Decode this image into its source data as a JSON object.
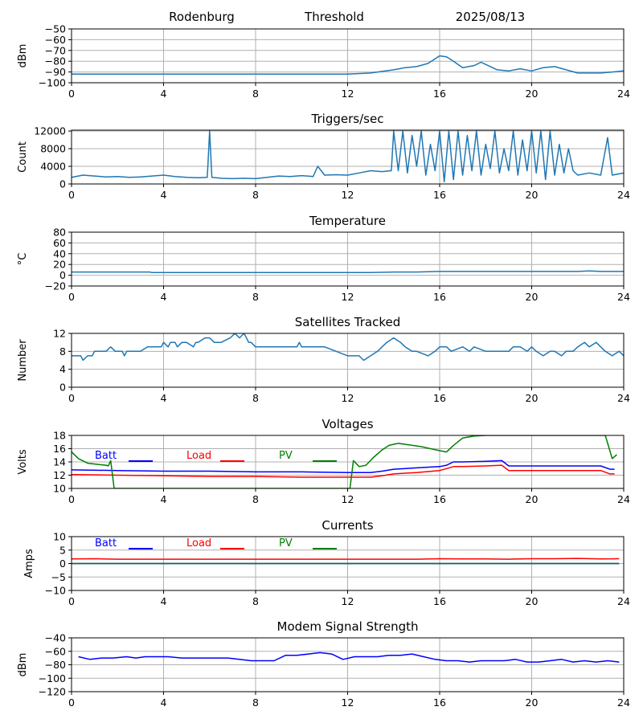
{
  "header": {
    "site": "Rodenburg",
    "mode": "Threshold",
    "date": "2025/08/13"
  },
  "chart_data": [
    {
      "id": "threshold",
      "type": "line",
      "title": "",
      "xlabel": "",
      "ylabel": "dBm",
      "xlim": [
        0,
        24
      ],
      "ylim": [
        -100,
        -50
      ],
      "xticks": [
        0,
        4,
        8,
        12,
        16,
        20,
        24
      ],
      "yticks": [
        -100,
        -90,
        -80,
        -70,
        -60,
        -50
      ],
      "series": [
        {
          "color": "#1f77b4",
          "x": [
            0,
            2,
            4,
            6,
            8,
            10,
            12,
            13,
            14,
            14.5,
            15,
            15.5,
            16,
            16.3,
            16.6,
            17,
            17.5,
            17.8,
            18,
            18.5,
            19,
            19.5,
            20,
            20.5,
            21,
            21.5,
            22,
            22.5,
            23,
            23.5,
            24
          ],
          "y": [
            -92,
            -92,
            -92,
            -92,
            -92,
            -92,
            -92,
            -91,
            -88,
            -86,
            -85,
            -82,
            -75,
            -76,
            -80,
            -86,
            -84,
            -81,
            -83,
            -88,
            -89,
            -87,
            -89,
            -86,
            -85,
            -88,
            -91,
            -91,
            -91,
            -90,
            -89
          ]
        }
      ]
    },
    {
      "id": "triggers",
      "type": "line",
      "title": "Triggers/sec",
      "xlabel": "",
      "ylabel": "Count",
      "xlim": [
        0,
        24
      ],
      "ylim": [
        0,
        12200
      ],
      "xticks": [
        0,
        4,
        8,
        12,
        16,
        20,
        24
      ],
      "yticks": [
        0,
        4000,
        8000,
        12000
      ],
      "series": [
        {
          "color": "#1f77b4",
          "x": [
            0,
            0.5,
            1,
            1.5,
            2,
            2.5,
            3,
            3.5,
            4,
            4.5,
            5,
            5.5,
            5.9,
            6,
            6.1,
            6.5,
            7,
            7.5,
            8,
            8.5,
            9,
            9.5,
            10,
            10.5,
            10.7,
            11,
            11.5,
            12,
            12.5,
            13,
            13.5,
            13.9,
            14,
            14.2,
            14.4,
            14.6,
            14.8,
            15,
            15.2,
            15.4,
            15.6,
            15.8,
            16,
            16.2,
            16.4,
            16.6,
            16.8,
            17,
            17.2,
            17.4,
            17.6,
            17.8,
            18,
            18.2,
            18.4,
            18.6,
            18.8,
            19,
            19.2,
            19.4,
            19.6,
            19.8,
            20,
            20.2,
            20.4,
            20.6,
            20.8,
            21,
            21.2,
            21.4,
            21.6,
            21.8,
            22,
            22.5,
            23,
            23.3,
            23.5,
            24
          ],
          "y": [
            1500,
            2000,
            1800,
            1600,
            1700,
            1500,
            1600,
            1800,
            2000,
            1700,
            1500,
            1400,
            1500,
            12000,
            1500,
            1300,
            1200,
            1300,
            1200,
            1500,
            1800,
            1700,
            1900,
            1700,
            4000,
            2000,
            2100,
            2000,
            2500,
            3000,
            2800,
            3000,
            12000,
            3000,
            12000,
            2500,
            11000,
            4000,
            12000,
            2000,
            9000,
            3000,
            12000,
            500,
            12000,
            1000,
            12000,
            2000,
            11000,
            3000,
            12000,
            2000,
            9000,
            3500,
            12000,
            2500,
            8000,
            3000,
            12000,
            2000,
            10000,
            3000,
            12000,
            2500,
            12000,
            1000,
            12000,
            2000,
            9000,
            2500,
            8000,
            3000,
            2000,
            2500,
            2000,
            10500,
            2000,
            2500
          ]
        }
      ]
    },
    {
      "id": "temperature",
      "type": "line",
      "title": "Temperature",
      "xlabel": "",
      "ylabel": "°C",
      "xlim": [
        0,
        24
      ],
      "ylim": [
        -20,
        80
      ],
      "xticks": [
        0,
        4,
        8,
        12,
        16,
        20,
        24
      ],
      "yticks": [
        -20,
        0,
        20,
        40,
        60,
        80
      ],
      "series": [
        {
          "color": "#1f77b4",
          "x": [
            0,
            3.4,
            3.5,
            8,
            12,
            13,
            14,
            15,
            16,
            18,
            20,
            22,
            22.5,
            23,
            24
          ],
          "y": [
            6,
            6,
            5,
            5,
            5,
            5,
            6,
            6,
            7,
            7,
            7,
            7,
            8,
            7,
            7
          ]
        }
      ]
    },
    {
      "id": "satellites",
      "type": "line",
      "title": "Satellites Tracked",
      "xlabel": "",
      "ylabel": "Number",
      "xlim": [
        0,
        24
      ],
      "ylim": [
        0,
        12
      ],
      "xticks": [
        0,
        4,
        8,
        12,
        16,
        20,
        24
      ],
      "yticks": [
        0,
        4,
        8,
        12
      ],
      "series": [
        {
          "color": "#1f77b4",
          "x": [
            0,
            0.4,
            0.5,
            0.7,
            0.9,
            1,
            1.5,
            1.7,
            1.9,
            2.2,
            2.3,
            2.4,
            2.6,
            3,
            3.3,
            3.5,
            3.9,
            4,
            4.2,
            4.3,
            4.5,
            4.6,
            4.8,
            5,
            5.3,
            5.4,
            5.5,
            5.8,
            6,
            6.2,
            6.5,
            6.9,
            7.1,
            7.3,
            7.5,
            7.7,
            7.8,
            8,
            8.5,
            9,
            9.5,
            9.8,
            9.9,
            10,
            10.5,
            11,
            11.5,
            12,
            12.5,
            12.7,
            13,
            13.3,
            13.5,
            13.7,
            14,
            14.3,
            14.5,
            14.8,
            15,
            15.5,
            15.8,
            16,
            16.3,
            16.5,
            17,
            17.3,
            17.5,
            18,
            18.5,
            19,
            19.2,
            19.5,
            19.8,
            20,
            20.2,
            20.5,
            20.8,
            21,
            21.3,
            21.5,
            21.8,
            22,
            22.3,
            22.5,
            22.8,
            23,
            23.2,
            23.5,
            23.8,
            24
          ],
          "y": [
            7,
            7,
            6,
            7,
            7,
            8,
            8,
            9,
            8,
            8,
            7,
            8,
            8,
            8,
            9,
            9,
            9,
            10,
            9,
            10,
            10,
            9,
            10,
            10,
            9,
            10,
            10,
            11,
            11,
            10,
            10,
            11,
            12,
            11,
            12,
            10,
            10,
            9,
            9,
            9,
            9,
            9,
            10,
            9,
            9,
            9,
            8,
            7,
            7,
            6,
            7,
            8,
            9,
            10,
            11,
            10,
            9,
            8,
            8,
            7,
            8,
            9,
            9,
            8,
            9,
            8,
            9,
            8,
            8,
            8,
            9,
            9,
            8,
            9,
            8,
            7,
            8,
            8,
            7,
            8,
            8,
            9,
            10,
            9,
            10,
            9,
            8,
            7,
            8,
            7
          ]
        }
      ]
    },
    {
      "id": "voltages",
      "type": "line",
      "title": "Voltages",
      "xlabel": "",
      "ylabel": "Volts",
      "xlim": [
        0,
        24
      ],
      "ylim": [
        10,
        18
      ],
      "xticks": [
        0,
        4,
        8,
        12,
        16,
        20,
        24
      ],
      "yticks": [
        10,
        12,
        14,
        16,
        18
      ],
      "legend": [
        "Batt",
        "Load",
        "PV"
      ],
      "series": [
        {
          "name": "Batt",
          "color": "#0000ff",
          "x": [
            0,
            2,
            4,
            6,
            8,
            10,
            12,
            13,
            13.5,
            14,
            15,
            16,
            16.3,
            16.6,
            17,
            18,
            18.7,
            19,
            20,
            22,
            23,
            23.4,
            23.6
          ],
          "y": [
            12.8,
            12.7,
            12.6,
            12.6,
            12.5,
            12.5,
            12.4,
            12.4,
            12.6,
            12.9,
            13.1,
            13.3,
            13.5,
            14.0,
            14.0,
            14.1,
            14.2,
            13.4,
            13.4,
            13.4,
            13.4,
            12.9,
            12.9
          ]
        },
        {
          "name": "Load",
          "color": "#ff0000",
          "x": [
            0,
            2,
            4,
            6,
            8,
            10,
            12,
            13,
            13.5,
            14,
            15,
            16,
            16.3,
            16.6,
            17,
            18,
            18.7,
            19,
            20,
            22,
            23,
            23.4,
            23.6
          ],
          "y": [
            12.1,
            12.0,
            11.9,
            11.8,
            11.8,
            11.7,
            11.7,
            11.7,
            11.9,
            12.2,
            12.4,
            12.7,
            13.0,
            13.3,
            13.3,
            13.4,
            13.5,
            12.7,
            12.7,
            12.7,
            12.7,
            12.2,
            12.2
          ]
        },
        {
          "name": "PV",
          "color": "#008000",
          "x": [
            0,
            0.3,
            0.7,
            1.2,
            1.5,
            1.6,
            1.7,
            1.85,
            12.1,
            12.25,
            12.5,
            12.8,
            13.1,
            13.5,
            13.8,
            14.2,
            14.6,
            15.2,
            16,
            16.3,
            16.6,
            17,
            17.5,
            18,
            23.2,
            23.5,
            23.7
          ],
          "y": [
            15.5,
            14.5,
            13.8,
            13.6,
            13.5,
            13.4,
            14.2,
            10,
            10,
            14.2,
            13.3,
            13.5,
            14.6,
            15.8,
            16.5,
            16.8,
            16.6,
            16.3,
            15.7,
            15.5,
            16.5,
            17.6,
            17.9,
            18,
            18,
            14.5,
            15.1
          ]
        }
      ]
    },
    {
      "id": "currents",
      "type": "line",
      "title": "Currents",
      "xlabel": "",
      "ylabel": "Amps",
      "xlim": [
        0,
        24
      ],
      "ylim": [
        -10,
        10
      ],
      "xticks": [
        0,
        4,
        8,
        12,
        16,
        20,
        24
      ],
      "yticks": [
        -10,
        -5,
        0,
        5,
        10
      ],
      "legend": [
        "Batt",
        "Load",
        "PV"
      ],
      "series": [
        {
          "name": "Batt",
          "color": "#0000ff",
          "x": [
            0,
            23.8
          ],
          "y": [
            0,
            0
          ]
        },
        {
          "name": "Load",
          "color": "#ff0000",
          "x": [
            0,
            1,
            2,
            4,
            6,
            8,
            10,
            12,
            14,
            15,
            16,
            17,
            18,
            19,
            20,
            21,
            22,
            23,
            23.8
          ],
          "y": [
            1.7,
            1.8,
            1.6,
            1.6,
            1.6,
            1.6,
            1.6,
            1.6,
            1.6,
            1.6,
            1.8,
            1.7,
            1.7,
            1.6,
            1.8,
            1.8,
            1.9,
            1.7,
            1.8
          ]
        },
        {
          "name": "PV",
          "color": "#008000",
          "x": [
            0,
            23.8
          ],
          "y": [
            0,
            0
          ]
        }
      ]
    },
    {
      "id": "modem",
      "type": "line",
      "title": "Modem Signal Strength",
      "xlabel": "",
      "ylabel": "dBm",
      "xlim": [
        0,
        24
      ],
      "ylim": [
        -120,
        -40
      ],
      "xticks": [
        0,
        4,
        8,
        12,
        16,
        20,
        24
      ],
      "yticks": [
        -120,
        -100,
        -80,
        -60,
        -40
      ],
      "series": [
        {
          "color": "#0000ff",
          "x": [
            0.3,
            0.8,
            1.3,
            1.8,
            2.4,
            2.8,
            3.2,
            3.7,
            4.2,
            4.8,
            5.3,
            5.8,
            6.3,
            6.8,
            7.3,
            7.8,
            8.3,
            8.8,
            9.3,
            9.8,
            10.3,
            10.8,
            11.3,
            11.8,
            12.3,
            12.8,
            13.3,
            13.8,
            14.3,
            14.8,
            15.3,
            15.8,
            16.3,
            16.8,
            17.3,
            17.8,
            18.3,
            18.8,
            19.3,
            19.8,
            20.3,
            20.8,
            21.3,
            21.8,
            22.3,
            22.8,
            23.3,
            23.8
          ],
          "y": [
            -68,
            -72,
            -70,
            -70,
            -68,
            -70,
            -68,
            -68,
            -68,
            -70,
            -70,
            -70,
            -70,
            -70,
            -72,
            -74,
            -74,
            -74,
            -66,
            -66,
            -64,
            -62,
            -64,
            -72,
            -68,
            -68,
            -68,
            -66,
            -66,
            -64,
            -68,
            -72,
            -74,
            -74,
            -76,
            -74,
            -74,
            -74,
            -72,
            -76,
            -76,
            -74,
            -72,
            -76,
            -74,
            -76,
            -74,
            -76
          ]
        }
      ]
    }
  ]
}
